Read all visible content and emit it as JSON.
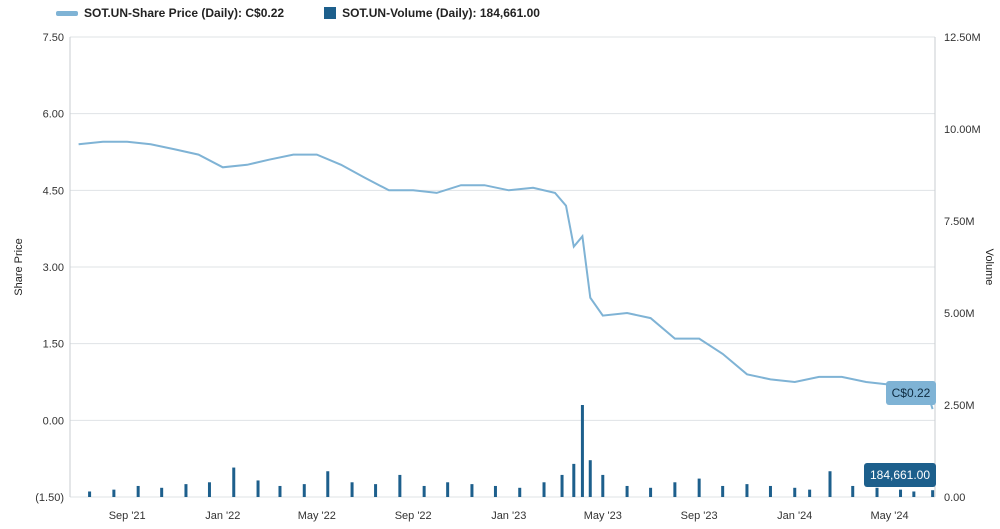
{
  "legend": {
    "price_label": "SOT.UN-Share Price (Daily): C$0.22",
    "volume_label": "SOT.UN-Volume (Daily): 184,661.00"
  },
  "colors": {
    "price": "#7fb3d5",
    "volume": "#1d5f8c",
    "grid": "#dfe3e6"
  },
  "chart_data": {
    "type": "line",
    "title": "",
    "xlabel": "",
    "ylabel": "Share Price",
    "y2label": "Volume",
    "ylim": [
      -1.5,
      7.5
    ],
    "y2lim": [
      0,
      12500000
    ],
    "yticks": [
      "7.50",
      "6.00",
      "4.50",
      "3.00",
      "1.50",
      "0.00",
      "(1.50)"
    ],
    "y2ticks": [
      "12.50M",
      "10.00M",
      "7.50M",
      "5.00M",
      "2.50M",
      "0.00"
    ],
    "xticks": [
      "Sep '21",
      "Jan '22",
      "May '22",
      "Sep '22",
      "Jan '23",
      "May '23",
      "Sep '23",
      "Jan '24",
      "May '24"
    ],
    "series": [
      {
        "name": "SOT.UN-Share Price (Daily)",
        "kind": "line",
        "x": [
          "2021-07-01",
          "2021-08-01",
          "2021-09-01",
          "2021-10-01",
          "2021-11-01",
          "2021-12-01",
          "2022-01-01",
          "2022-02-01",
          "2022-03-01",
          "2022-04-01",
          "2022-05-01",
          "2022-06-01",
          "2022-07-01",
          "2022-08-01",
          "2022-09-01",
          "2022-10-01",
          "2022-11-01",
          "2022-12-01",
          "2023-01-01",
          "2023-02-01",
          "2023-03-01",
          "2023-03-15",
          "2023-03-25",
          "2023-04-05",
          "2023-04-15",
          "2023-05-01",
          "2023-06-01",
          "2023-07-01",
          "2023-08-01",
          "2023-09-01",
          "2023-10-01",
          "2023-11-01",
          "2023-12-01",
          "2024-01-01",
          "2024-02-01",
          "2024-03-01",
          "2024-04-01",
          "2024-05-01",
          "2024-06-01",
          "2024-06-15",
          "2024-06-25"
        ],
        "values": [
          5.4,
          5.45,
          5.45,
          5.4,
          5.3,
          5.2,
          4.95,
          5.0,
          5.1,
          5.2,
          5.2,
          5.0,
          4.75,
          4.5,
          4.5,
          4.45,
          4.6,
          4.6,
          4.5,
          4.55,
          4.45,
          4.2,
          3.4,
          3.6,
          2.4,
          2.05,
          2.1,
          2.0,
          1.6,
          1.6,
          1.3,
          0.9,
          0.8,
          0.75,
          0.85,
          0.85,
          0.75,
          0.7,
          0.7,
          0.7,
          0.22
        ]
      },
      {
        "name": "SOT.UN-Volume (Daily)",
        "kind": "bar",
        "x": [
          "2021-07-15",
          "2021-08-15",
          "2021-09-15",
          "2021-10-15",
          "2021-11-15",
          "2021-12-15",
          "2022-01-15",
          "2022-02-15",
          "2022-03-15",
          "2022-04-15",
          "2022-05-15",
          "2022-06-15",
          "2022-07-15",
          "2022-08-15",
          "2022-09-15",
          "2022-10-15",
          "2022-11-15",
          "2022-12-15",
          "2023-01-15",
          "2023-02-15",
          "2023-03-10",
          "2023-03-25",
          "2023-04-05",
          "2023-04-15",
          "2023-05-01",
          "2023-06-01",
          "2023-07-01",
          "2023-08-01",
          "2023-09-01",
          "2023-10-01",
          "2023-11-01",
          "2023-12-01",
          "2024-01-01",
          "2024-01-20",
          "2024-02-15",
          "2024-03-15",
          "2024-04-15",
          "2024-05-15",
          "2024-06-01",
          "2024-06-25"
        ],
        "values": [
          150000,
          200000,
          300000,
          250000,
          350000,
          400000,
          800000,
          450000,
          300000,
          350000,
          700000,
          400000,
          350000,
          600000,
          300000,
          400000,
          350000,
          300000,
          250000,
          400000,
          600000,
          900000,
          2500000,
          1000000,
          600000,
          300000,
          250000,
          400000,
          500000,
          300000,
          350000,
          300000,
          250000,
          200000,
          700000,
          300000,
          250000,
          200000,
          150000,
          184661
        ]
      }
    ],
    "callouts": [
      "C$0.22",
      "184,661.00"
    ],
    "grid": true,
    "legend_position": "top-left"
  }
}
